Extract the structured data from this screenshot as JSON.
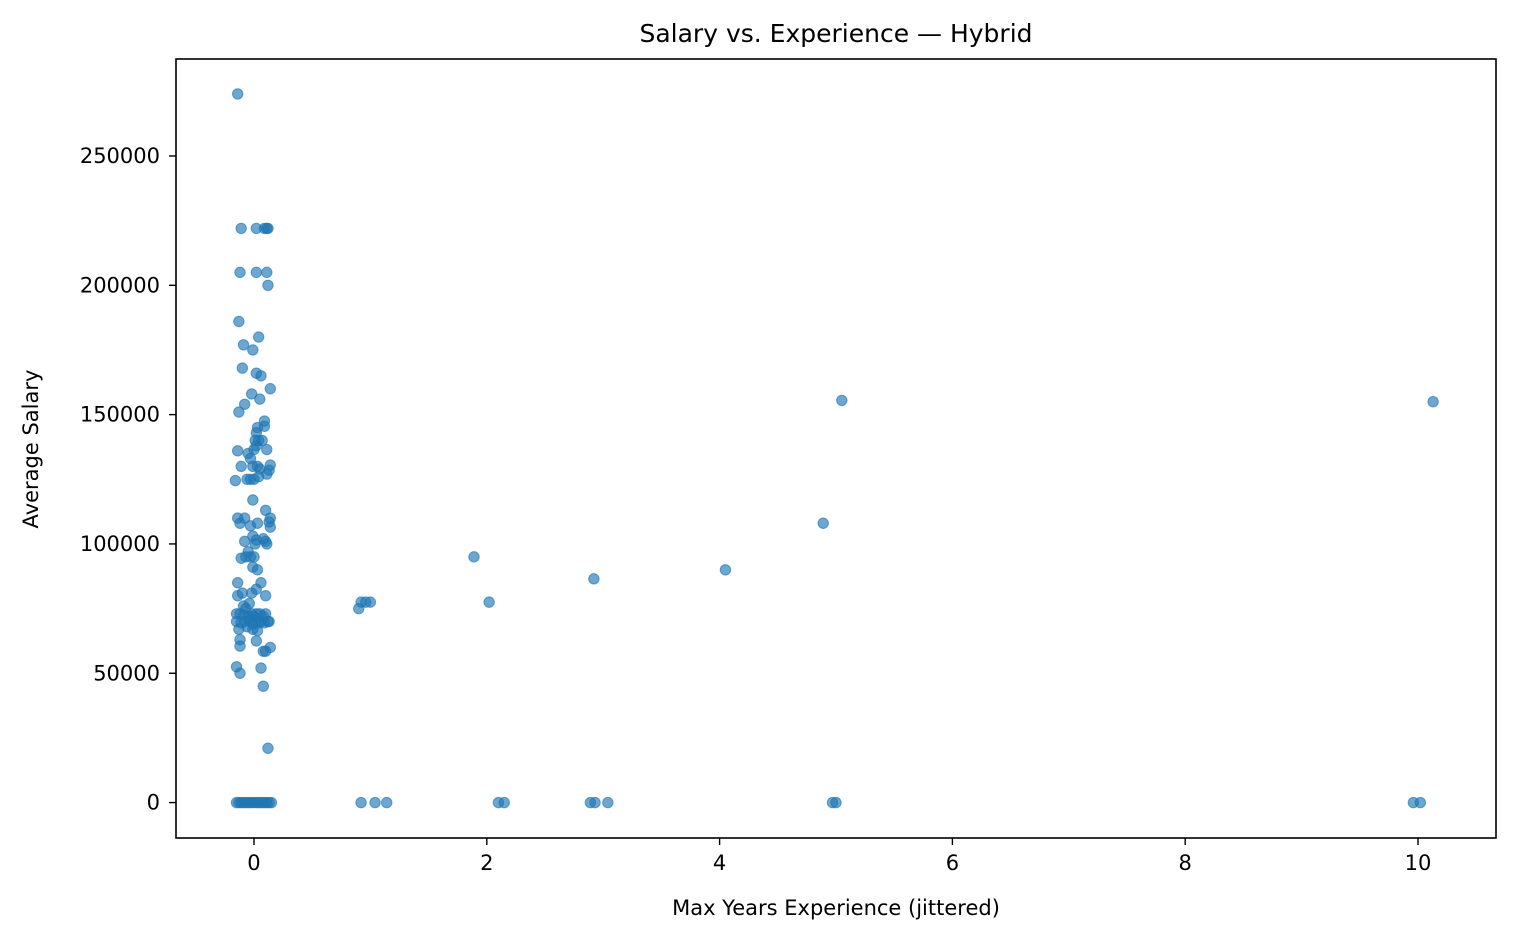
{
  "chart_data": {
    "type": "scatter",
    "title": "Salary vs. Experience — Hybrid",
    "xlabel": "Max Years Experience (jittered)",
    "ylabel": "Average Salary",
    "xlim": [
      -0.67,
      10.67
    ],
    "ylim": [
      -13700,
      287500
    ],
    "xticks": [
      0,
      2,
      4,
      6,
      8,
      10
    ],
    "xtick_labels": [
      "0",
      "2",
      "4",
      "6",
      "8",
      "10"
    ],
    "yticks": [
      0,
      50000,
      100000,
      150000,
      200000,
      250000
    ],
    "ytick_labels": [
      "0",
      "50000",
      "100000",
      "150000",
      "200000",
      "250000"
    ],
    "grid": false,
    "marker_color": "#1f77b4",
    "marker_opacity": 0.65,
    "points": [
      {
        "x": -0.14,
        "y": 274000
      },
      {
        "x": -0.11,
        "y": 222000
      },
      {
        "x": 0.02,
        "y": 222000
      },
      {
        "x": 0.09,
        "y": 222000
      },
      {
        "x": 0.11,
        "y": 222000
      },
      {
        "x": 0.12,
        "y": 222000
      },
      {
        "x": -0.12,
        "y": 205000
      },
      {
        "x": 0.02,
        "y": 205000
      },
      {
        "x": 0.11,
        "y": 205000
      },
      {
        "x": 0.12,
        "y": 200000
      },
      {
        "x": -0.13,
        "y": 186000
      },
      {
        "x": 0.04,
        "y": 180000
      },
      {
        "x": -0.09,
        "y": 177000
      },
      {
        "x": -0.01,
        "y": 175000
      },
      {
        "x": -0.1,
        "y": 168000
      },
      {
        "x": 0.02,
        "y": 166000
      },
      {
        "x": 0.06,
        "y": 165000
      },
      {
        "x": 0.14,
        "y": 160000
      },
      {
        "x": -0.02,
        "y": 158000
      },
      {
        "x": 0.05,
        "y": 156000
      },
      {
        "x": -0.08,
        "y": 154000
      },
      {
        "x": -0.13,
        "y": 151000
      },
      {
        "x": 0.09,
        "y": 147500
      },
      {
        "x": 0.09,
        "y": 145500
      },
      {
        "x": 0.03,
        "y": 145000
      },
      {
        "x": 0.02,
        "y": 143000
      },
      {
        "x": 0.01,
        "y": 140000
      },
      {
        "x": 0.04,
        "y": 140000
      },
      {
        "x": 0.07,
        "y": 140000
      },
      {
        "x": 0.02,
        "y": 138000
      },
      {
        "x": 0.0,
        "y": 136500
      },
      {
        "x": 0.11,
        "y": 136500
      },
      {
        "x": -0.14,
        "y": 136000
      },
      {
        "x": -0.05,
        "y": 135000
      },
      {
        "x": -0.03,
        "y": 133000
      },
      {
        "x": -0.11,
        "y": 130000
      },
      {
        "x": -0.01,
        "y": 130000
      },
      {
        "x": 0.03,
        "y": 130000
      },
      {
        "x": 0.05,
        "y": 129000
      },
      {
        "x": 0.14,
        "y": 130500
      },
      {
        "x": 0.13,
        "y": 128500
      },
      {
        "x": 0.11,
        "y": 127000
      },
      {
        "x": -0.06,
        "y": 125000
      },
      {
        "x": -0.03,
        "y": 125000
      },
      {
        "x": 0.0,
        "y": 125000
      },
      {
        "x": 0.04,
        "y": 126000
      },
      {
        "x": -0.16,
        "y": 124500
      },
      {
        "x": -0.01,
        "y": 117000
      },
      {
        "x": 0.1,
        "y": 113000
      },
      {
        "x": -0.14,
        "y": 110000
      },
      {
        "x": -0.08,
        "y": 110000
      },
      {
        "x": 0.14,
        "y": 110000
      },
      {
        "x": -0.12,
        "y": 108000
      },
      {
        "x": -0.03,
        "y": 107000
      },
      {
        "x": 0.03,
        "y": 108000
      },
      {
        "x": 0.13,
        "y": 108500
      },
      {
        "x": 0.14,
        "y": 106500
      },
      {
        "x": -0.01,
        "y": 103000
      },
      {
        "x": 0.02,
        "y": 101500
      },
      {
        "x": 0.08,
        "y": 102000
      },
      {
        "x": -0.08,
        "y": 101000
      },
      {
        "x": 0.01,
        "y": 100000
      },
      {
        "x": 0.1,
        "y": 101000
      },
      {
        "x": 0.11,
        "y": 100000
      },
      {
        "x": -0.11,
        "y": 94500
      },
      {
        "x": -0.07,
        "y": 95000
      },
      {
        "x": -0.03,
        "y": 95000
      },
      {
        "x": 0.0,
        "y": 95000
      },
      {
        "x": -0.05,
        "y": 97000
      },
      {
        "x": -0.01,
        "y": 91000
      },
      {
        "x": 0.03,
        "y": 90000
      },
      {
        "x": 0.06,
        "y": 85000
      },
      {
        "x": -0.14,
        "y": 85000
      },
      {
        "x": 0.02,
        "y": 82500
      },
      {
        "x": -0.02,
        "y": 81000
      },
      {
        "x": -0.1,
        "y": 81000
      },
      {
        "x": -0.14,
        "y": 80000
      },
      {
        "x": 0.1,
        "y": 80000
      },
      {
        "x": -0.04,
        "y": 77000
      },
      {
        "x": -0.09,
        "y": 76000
      },
      {
        "x": -0.07,
        "y": 75000
      },
      {
        "x": -0.15,
        "y": 73000
      },
      {
        "x": -0.12,
        "y": 73000
      },
      {
        "x": -0.09,
        "y": 72500
      },
      {
        "x": -0.05,
        "y": 72000
      },
      {
        "x": -0.02,
        "y": 73000
      },
      {
        "x": 0.0,
        "y": 72000
      },
      {
        "x": 0.02,
        "y": 73000
      },
      {
        "x": 0.05,
        "y": 73000
      },
      {
        "x": 0.08,
        "y": 72000
      },
      {
        "x": 0.1,
        "y": 73000
      },
      {
        "x": -0.15,
        "y": 70000
      },
      {
        "x": -0.11,
        "y": 69500
      },
      {
        "x": -0.08,
        "y": 70000
      },
      {
        "x": -0.04,
        "y": 70500
      },
      {
        "x": -0.01,
        "y": 69000
      },
      {
        "x": 0.01,
        "y": 70000
      },
      {
        "x": 0.04,
        "y": 69500
      },
      {
        "x": 0.06,
        "y": 70000
      },
      {
        "x": 0.09,
        "y": 69500
      },
      {
        "x": 0.12,
        "y": 70000
      },
      {
        "x": 0.13,
        "y": 70000
      },
      {
        "x": -0.13,
        "y": 67000
      },
      {
        "x": -0.06,
        "y": 68000
      },
      {
        "x": -0.01,
        "y": 67000
      },
      {
        "x": 0.03,
        "y": 66500
      },
      {
        "x": -0.12,
        "y": 63000
      },
      {
        "x": 0.02,
        "y": 62500
      },
      {
        "x": -0.12,
        "y": 60500
      },
      {
        "x": 0.14,
        "y": 60000
      },
      {
        "x": 0.08,
        "y": 58500
      },
      {
        "x": 0.1,
        "y": 58500
      },
      {
        "x": -0.15,
        "y": 52500
      },
      {
        "x": 0.06,
        "y": 52000
      },
      {
        "x": -0.12,
        "y": 50000
      },
      {
        "x": 0.08,
        "y": 45000
      },
      {
        "x": 0.12,
        "y": 21000
      },
      {
        "x": -0.15,
        "y": 0
      },
      {
        "x": -0.13,
        "y": 0
      },
      {
        "x": -0.11,
        "y": 0
      },
      {
        "x": -0.09,
        "y": 0
      },
      {
        "x": -0.07,
        "y": 0
      },
      {
        "x": -0.05,
        "y": 0
      },
      {
        "x": -0.03,
        "y": 0
      },
      {
        "x": -0.01,
        "y": 0
      },
      {
        "x": 0.01,
        "y": 0
      },
      {
        "x": 0.03,
        "y": 0
      },
      {
        "x": 0.05,
        "y": 0
      },
      {
        "x": 0.07,
        "y": 0
      },
      {
        "x": 0.09,
        "y": 0
      },
      {
        "x": 0.11,
        "y": 0
      },
      {
        "x": 0.13,
        "y": 0
      },
      {
        "x": 0.15,
        "y": 0
      },
      {
        "x": 0.9,
        "y": 75000
      },
      {
        "x": 0.92,
        "y": 77500
      },
      {
        "x": 0.96,
        "y": 77500
      },
      {
        "x": 1.0,
        "y": 77500
      },
      {
        "x": 0.92,
        "y": 0
      },
      {
        "x": 1.04,
        "y": 0
      },
      {
        "x": 1.14,
        "y": 0
      },
      {
        "x": 1.89,
        "y": 95000
      },
      {
        "x": 2.02,
        "y": 77500
      },
      {
        "x": 2.1,
        "y": 0
      },
      {
        "x": 2.15,
        "y": 0
      },
      {
        "x": 2.92,
        "y": 86500
      },
      {
        "x": 2.89,
        "y": 0
      },
      {
        "x": 2.93,
        "y": 0
      },
      {
        "x": 3.04,
        "y": 0
      },
      {
        "x": 4.05,
        "y": 90000
      },
      {
        "x": 4.89,
        "y": 108000
      },
      {
        "x": 5.05,
        "y": 155500
      },
      {
        "x": 4.97,
        "y": 0
      },
      {
        "x": 5.0,
        "y": 0
      },
      {
        "x": 10.13,
        "y": 155000
      },
      {
        "x": 9.96,
        "y": 0
      },
      {
        "x": 10.02,
        "y": 0
      }
    ]
  }
}
